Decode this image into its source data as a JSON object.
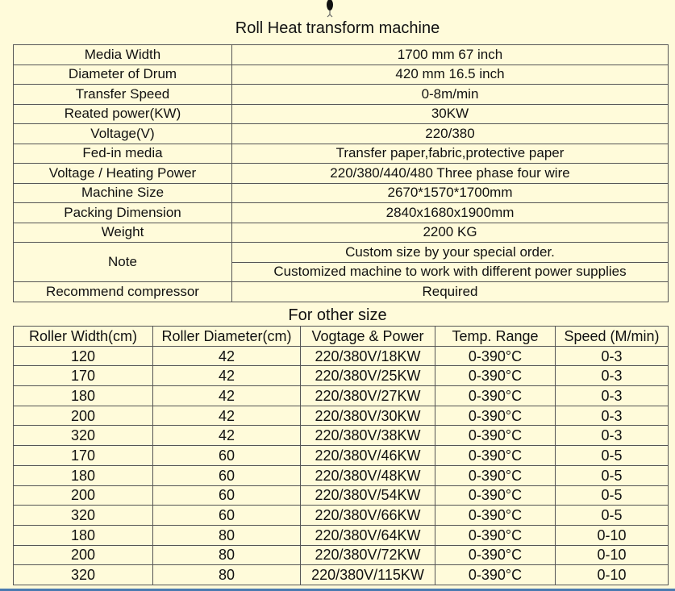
{
  "title": "Roll Heat transform machine",
  "specs": [
    {
      "label": "Media Width",
      "value": "1700 mm  67 inch"
    },
    {
      "label": "Diameter of Drum",
      "value": "420 mm  16.5 inch"
    },
    {
      "label": "Transfer Speed",
      "value": "0-8m/min"
    },
    {
      "label": "Reated power(KW)",
      "value": "30KW"
    },
    {
      "label": "Voltage(V)",
      "value": "220/380"
    },
    {
      "label": "Fed-in media",
      "value": "Transfer paper,fabric,protective paper"
    },
    {
      "label": "Voltage / Heating Power",
      "value": "220/380/440/480  Three phase four wire"
    },
    {
      "label": "Machine Size",
      "value": "2670*1570*1700mm"
    },
    {
      "label": "Packing Dimension",
      "value": "2840x1680x1900mm"
    },
    {
      "label": "Weight",
      "value": "2200 KG"
    }
  ],
  "note": {
    "label": "Note",
    "values": [
      "Custom size by your special order.",
      "Customized machine to work with  different power supplies"
    ]
  },
  "compressor": {
    "label": "Recommend compressor",
    "value": "Required"
  },
  "other_title": "For other size",
  "other_headers": [
    "Roller Width(cm)",
    "Roller Diameter(cm)",
    "Vogtage & Power",
    "Temp. Range",
    "Speed (M/min)"
  ],
  "other_rows": [
    [
      "120",
      "42",
      "220/380V/18KW",
      "0-390°C",
      "0-3"
    ],
    [
      "170",
      "42",
      "220/380V/25KW",
      "0-390°C",
      "0-3"
    ],
    [
      "180",
      "42",
      "220/380V/27KW",
      "0-390°C",
      "0-3"
    ],
    [
      "200",
      "42",
      "220/380V/30KW",
      "0-390°C",
      "0-3"
    ],
    [
      "320",
      "42",
      "220/380V/38KW",
      "0-390°C",
      "0-3"
    ],
    [
      "170",
      "60",
      "220/380V/46KW",
      "0-390°C",
      "0-5"
    ],
    [
      "180",
      "60",
      "220/380V/48KW",
      "0-390°C",
      "0-5"
    ],
    [
      "200",
      "60",
      "220/380V/54KW",
      "0-390°C",
      "0-5"
    ],
    [
      "320",
      "60",
      "220/380V/66KW",
      "0-390°C",
      "0-5"
    ],
    [
      "180",
      "80",
      "220/380V/64KW",
      "0-390°C",
      "0-10"
    ],
    [
      "200",
      "80",
      "220/380V/72KW",
      "0-390°C",
      "0-10"
    ],
    [
      "320",
      "80",
      "220/380V/115KW",
      "0-390°C",
      "0-10"
    ]
  ]
}
